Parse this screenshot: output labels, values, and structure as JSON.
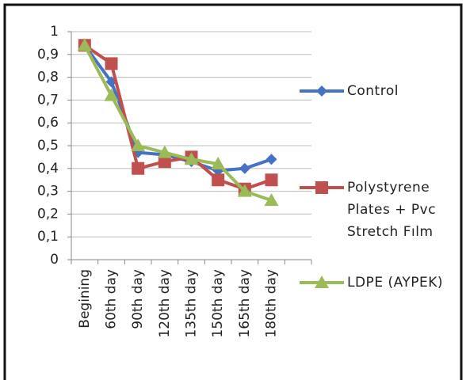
{
  "chart_data": {
    "type": "line",
    "categories": [
      "Begining",
      "60th day",
      "90th day",
      "120th day",
      "135th day",
      "150th day",
      "165th day",
      "180th day"
    ],
    "series": [
      {
        "name": "Control",
        "color": "#4472c4",
        "marker": "diamond",
        "values": [
          0.94,
          0.78,
          0.47,
          0.46,
          0.43,
          0.39,
          0.4,
          0.44
        ]
      },
      {
        "name": "Polystyrene Plates + Pvc Stretch Fılm",
        "color": "#c0504d",
        "marker": "square",
        "values": [
          0.94,
          0.86,
          0.4,
          0.43,
          0.45,
          0.35,
          0.31,
          0.35
        ]
      },
      {
        "name": "LDPE (AYPEK)",
        "color": "#9bbb59",
        "marker": "triangle",
        "values": [
          0.94,
          0.72,
          0.5,
          0.47,
          0.44,
          0.42,
          0.3,
          0.26
        ]
      }
    ],
    "ylim": [
      0,
      1
    ],
    "yticks": [
      0,
      {
        "value": 0.1,
        "label": "0,1"
      },
      {
        "value": 0.2,
        "label": "0,2"
      },
      {
        "value": 0.3,
        "label": "0,3"
      },
      {
        "value": 0.4,
        "label": "0,4"
      },
      {
        "value": 0.5,
        "label": "0,5"
      },
      {
        "value": 0.6,
        "label": "0,6"
      },
      {
        "value": 0.7,
        "label": "0,7"
      },
      {
        "value": 0.8,
        "label": "0,8"
      },
      {
        "value": 0.9,
        "label": "0,9"
      },
      1
    ],
    "grid": true,
    "legend": "right"
  }
}
